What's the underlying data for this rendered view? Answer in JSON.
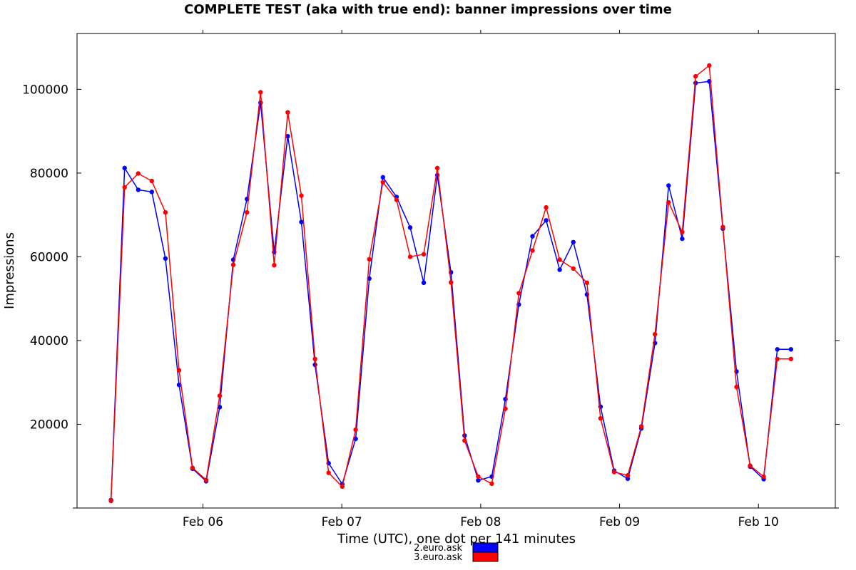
{
  "chart_data": {
    "type": "line",
    "title": "COMPLETE TEST (aka with true end): banner impressions over time",
    "xlabel": "Time (UTC), one dot per 141 minutes",
    "ylabel": "Impressions",
    "x_unit": "days",
    "x_ticks": [
      {
        "value": 6,
        "label": "Feb 06"
      },
      {
        "value": 7,
        "label": "Feb 07"
      },
      {
        "value": 8,
        "label": "Feb 08"
      },
      {
        "value": 9,
        "label": "Feb 09"
      },
      {
        "value": 10,
        "label": "Feb 10"
      }
    ],
    "y_ticks": [
      20000,
      40000,
      60000,
      80000,
      100000
    ],
    "xlim": [
      5.0935,
      10.5535
    ],
    "ylim": [
      0,
      113333
    ],
    "grid": false,
    "legend_position": "bottom-center",
    "x": [
      5.338,
      5.436,
      5.534,
      5.632,
      5.73,
      5.828,
      5.925,
      6.023,
      6.121,
      6.219,
      6.317,
      6.415,
      6.513,
      6.611,
      6.709,
      6.807,
      6.905,
      7.003,
      7.1,
      7.198,
      7.296,
      7.394,
      7.492,
      7.59,
      7.688,
      7.786,
      7.884,
      7.982,
      8.08,
      8.178,
      8.275,
      8.373,
      8.471,
      8.569,
      8.667,
      8.765,
      8.863,
      8.961,
      9.059,
      9.157,
      9.255,
      9.353,
      9.451,
      9.548,
      9.646,
      9.744,
      9.842,
      9.94,
      10.038,
      10.136,
      10.234
    ],
    "series": [
      {
        "name": "2.euro.ask",
        "color": "#0000ff",
        "values": [
          1900,
          81200,
          76000,
          75500,
          59600,
          29400,
          9400,
          6400,
          24100,
          59300,
          73800,
          96800,
          61100,
          88800,
          68300,
          34200,
          10700,
          5700,
          16500,
          54800,
          79000,
          74300,
          67000,
          53800,
          79500,
          56300,
          17300,
          6600,
          7500,
          26000,
          48600,
          64900,
          68700,
          56900,
          63500,
          51000,
          24200,
          8900,
          7000,
          19000,
          39400,
          77000,
          64300,
          101500,
          101900,
          66700,
          32600,
          9900,
          6900,
          37900,
          37900
        ]
      },
      {
        "name": "3.euro.ask",
        "color": "#ff0000",
        "values": [
          1700,
          76600,
          79900,
          78100,
          70600,
          32900,
          9600,
          6700,
          26800,
          58100,
          70600,
          99300,
          58000,
          94500,
          74600,
          35600,
          8400,
          5100,
          18700,
          59400,
          77800,
          73600,
          60000,
          60600,
          81200,
          53900,
          16100,
          7500,
          5800,
          23700,
          51300,
          61500,
          71800,
          59300,
          57200,
          53800,
          21400,
          8600,
          7800,
          19500,
          41500,
          73000,
          65900,
          103100,
          105700,
          67100,
          28900,
          10100,
          7500,
          35600,
          35600
        ]
      }
    ]
  }
}
